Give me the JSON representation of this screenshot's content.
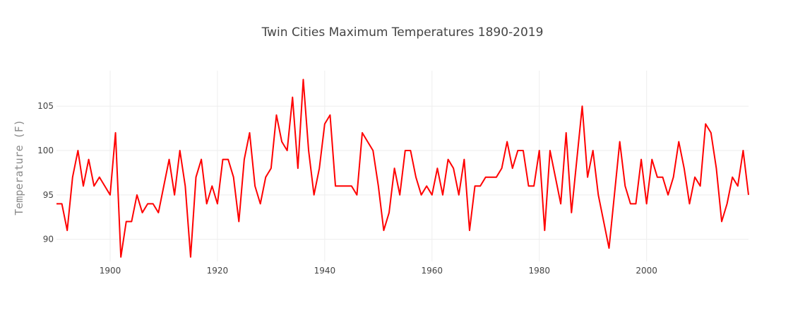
{
  "chart_data": {
    "type": "line",
    "title": "Twin Cities Maximum Temperatures 1890-2019",
    "xlabel": "",
    "ylabel": "Temperature (F)",
    "xlim": [
      1890,
      2019
    ],
    "ylim": [
      87.5,
      109
    ],
    "x_ticks": [
      1900,
      1920,
      1940,
      1960,
      1980,
      2000
    ],
    "y_ticks": [
      90,
      95,
      100,
      105
    ],
    "grid": true,
    "line_color": "#ff0000",
    "grid_color": "#eeeeee",
    "series": [
      {
        "x": [
          1890,
          1891,
          1892,
          1893,
          1894,
          1895,
          1896,
          1897,
          1898,
          1899,
          1900,
          1901,
          1902,
          1903,
          1904,
          1905,
          1906,
          1907,
          1908,
          1909,
          1910,
          1911,
          1912,
          1913,
          1914,
          1915,
          1916,
          1917,
          1918,
          1919,
          1920,
          1921,
          1922,
          1923,
          1924,
          1925,
          1926,
          1927,
          1928,
          1929,
          1930,
          1931,
          1932,
          1933,
          1934,
          1935,
          1936,
          1937,
          1938,
          1939,
          1940,
          1941,
          1942,
          1943,
          1944,
          1945,
          1946,
          1947,
          1948,
          1949,
          1950,
          1951,
          1952,
          1953,
          1954,
          1955,
          1956,
          1957,
          1958,
          1959,
          1960,
          1961,
          1962,
          1963,
          1964,
          1965,
          1966,
          1967,
          1968,
          1969,
          1970,
          1971,
          1972,
          1973,
          1974,
          1975,
          1976,
          1977,
          1978,
          1979,
          1980,
          1981,
          1982,
          1983,
          1984,
          1985,
          1986,
          1987,
          1988,
          1989,
          1990,
          1991,
          1992,
          1993,
          1994,
          1995,
          1996,
          1997,
          1998,
          1999,
          2000,
          2001,
          2002,
          2003,
          2004,
          2005,
          2006,
          2007,
          2008,
          2009,
          2010,
          2011,
          2012,
          2013,
          2014,
          2015,
          2016,
          2017,
          2018,
          2019
        ],
        "values": [
          94,
          94,
          91,
          97,
          100,
          96,
          99,
          96,
          97,
          96,
          95,
          102,
          88,
          92,
          92,
          95,
          93,
          94,
          94,
          93,
          96,
          99,
          95,
          100,
          96,
          88,
          97,
          99,
          94,
          96,
          94,
          99,
          99,
          97,
          92,
          99,
          102,
          96,
          94,
          97,
          98,
          104,
          101,
          100,
          106,
          98,
          108,
          100,
          95,
          98,
          103,
          104,
          96,
          96,
          96,
          96,
          95,
          102,
          101,
          100,
          96,
          91,
          93,
          98,
          95,
          100,
          100,
          97,
          95,
          96,
          95,
          98,
          95,
          99,
          98,
          95,
          99,
          91,
          96,
          96,
          97,
          97,
          97,
          98,
          101,
          98,
          100,
          100,
          96,
          96,
          100,
          91,
          100,
          97,
          94,
          102,
          93,
          99,
          105,
          97,
          100,
          95,
          92,
          89,
          95,
          101,
          96,
          94,
          94,
          99,
          94,
          99,
          97,
          97,
          95,
          97,
          101,
          98,
          94,
          97,
          96,
          103,
          102,
          98,
          92,
          94,
          97,
          96,
          100,
          95
        ]
      }
    ]
  }
}
